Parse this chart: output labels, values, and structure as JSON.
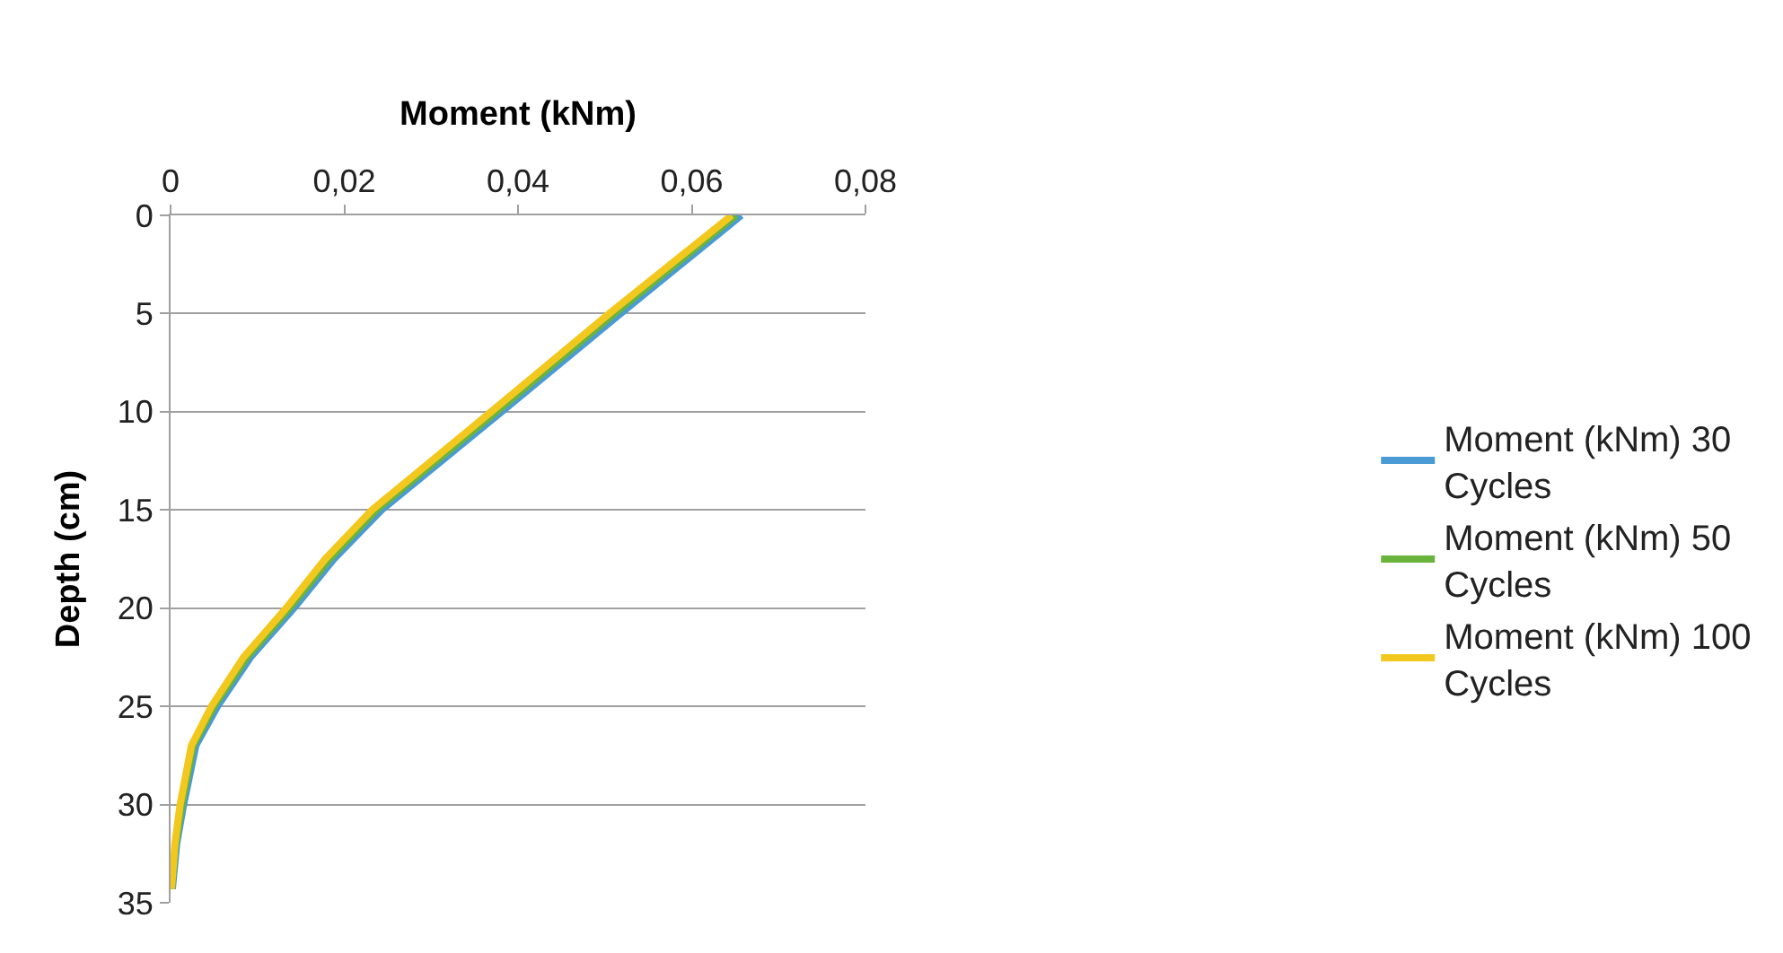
{
  "chart_data": {
    "type": "line",
    "xlabel": "Moment (kNm)",
    "ylabel": "Depth (cm)",
    "xlim": [
      0,
      0.08
    ],
    "xticks": [
      {
        "value": 0,
        "label": "0"
      },
      {
        "value": 0.02,
        "label": "0,02"
      },
      {
        "value": 0.04,
        "label": "0,04"
      },
      {
        "value": 0.06,
        "label": "0,06"
      },
      {
        "value": 0.08,
        "label": "0,08"
      }
    ],
    "ylim": [
      35,
      0
    ],
    "yticks": [
      0,
      5,
      10,
      15,
      20,
      25,
      30,
      35
    ],
    "grid": "y",
    "legend": "right",
    "marker": "none",
    "line_style": "solid",
    "series": [
      {
        "name": "Moment (kNm) 30 Cycles",
        "color": "#4a9ad4",
        "x": [
          0.0657,
          0.0518,
          0.0381,
          0.0243,
          0.0188,
          0.0142,
          0.0092,
          0.0054,
          0.0029,
          0.0015,
          0.0007,
          0.0002
        ],
        "values": [
          0,
          5,
          10,
          15,
          17.5,
          20,
          22.5,
          25,
          27,
          30,
          32,
          34.3
        ]
      },
      {
        "name": "Moment (kNm) 50 Cycles",
        "color": "#6ab43e",
        "x": [
          0.0651,
          0.0511,
          0.0375,
          0.0237,
          0.0183,
          0.0137,
          0.0088,
          0.005,
          0.0026,
          0.0013,
          0.0006,
          0.0001
        ],
        "values": [
          0,
          5,
          10,
          15,
          17.5,
          20,
          22.5,
          25,
          27,
          30,
          32,
          34.3
        ]
      },
      {
        "name": "Moment (kNm) 100 Cycles",
        "color": "#f2c81e",
        "x": [
          0.0646,
          0.0505,
          0.0369,
          0.0232,
          0.0178,
          0.0133,
          0.0084,
          0.0047,
          0.0024,
          0.0011,
          0.0005,
          0.0001
        ],
        "values": [
          0,
          5,
          10,
          15,
          17.5,
          20,
          22.5,
          25,
          27,
          30,
          32,
          34.3
        ]
      }
    ]
  }
}
